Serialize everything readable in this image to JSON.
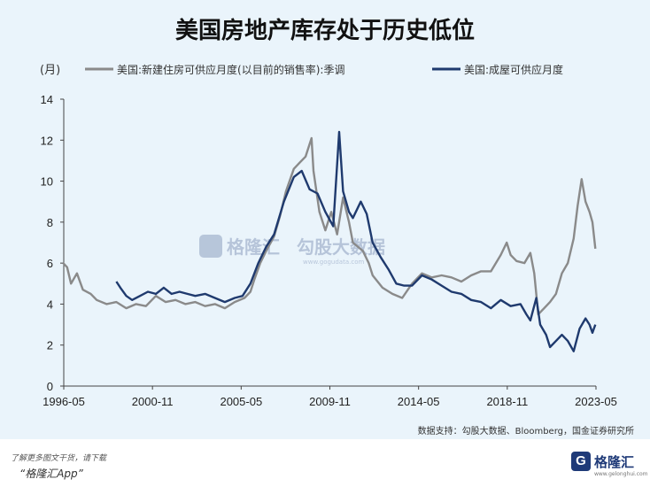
{
  "title": "美国房地产库存处于历史低位",
  "chart_data": {
    "type": "line",
    "unit_label": "(月)",
    "ylim": [
      0,
      14
    ],
    "yticks": [
      0,
      2,
      4,
      6,
      8,
      10,
      12,
      14
    ],
    "xlim": [
      1996.33,
      2023.33
    ],
    "xticks": [
      {
        "label": "1996-05",
        "value": 1996.33
      },
      {
        "label": "2000-11",
        "value": 2000.83
      },
      {
        "label": "2005-05",
        "value": 2005.33
      },
      {
        "label": "2009-11",
        "value": 2009.83
      },
      {
        "label": "2014-05",
        "value": 2014.33
      },
      {
        "label": "2018-11",
        "value": 2018.83
      },
      {
        "label": "2023-05",
        "value": 2023.33
      }
    ],
    "legend_position": "top",
    "series": [
      {
        "name": "美国:新建住房可供应月度(以目前的销售率):季调",
        "color": "#8a8a8a",
        "points": [
          [
            1996.3,
            6.0
          ],
          [
            1996.5,
            5.8
          ],
          [
            1996.7,
            5.0
          ],
          [
            1997.0,
            5.5
          ],
          [
            1997.3,
            4.7
          ],
          [
            1997.7,
            4.5
          ],
          [
            1998.0,
            4.2
          ],
          [
            1998.5,
            4.0
          ],
          [
            1999.0,
            4.1
          ],
          [
            1999.5,
            3.8
          ],
          [
            2000.0,
            4.0
          ],
          [
            2000.5,
            3.9
          ],
          [
            2000.8,
            4.2
          ],
          [
            2001.0,
            4.4
          ],
          [
            2001.5,
            4.1
          ],
          [
            2002.0,
            4.2
          ],
          [
            2002.5,
            4.0
          ],
          [
            2003.0,
            4.1
          ],
          [
            2003.5,
            3.9
          ],
          [
            2004.0,
            4.0
          ],
          [
            2004.5,
            3.8
          ],
          [
            2005.0,
            4.1
          ],
          [
            2005.5,
            4.3
          ],
          [
            2005.8,
            4.6
          ],
          [
            2006.0,
            5.2
          ],
          [
            2006.3,
            6.0
          ],
          [
            2006.6,
            6.6
          ],
          [
            2007.0,
            7.3
          ],
          [
            2007.3,
            8.3
          ],
          [
            2007.6,
            9.5
          ],
          [
            2008.0,
            10.6
          ],
          [
            2008.3,
            10.9
          ],
          [
            2008.6,
            11.2
          ],
          [
            2008.9,
            12.1
          ],
          [
            2009.0,
            10.5
          ],
          [
            2009.3,
            8.5
          ],
          [
            2009.6,
            7.6
          ],
          [
            2009.9,
            8.5
          ],
          [
            2010.2,
            7.4
          ],
          [
            2010.5,
            9.2
          ],
          [
            2010.8,
            8.0
          ],
          [
            2011.0,
            7.0
          ],
          [
            2011.5,
            6.6
          ],
          [
            2011.8,
            6.0
          ],
          [
            2012.0,
            5.4
          ],
          [
            2012.5,
            4.8
          ],
          [
            2013.0,
            4.5
          ],
          [
            2013.5,
            4.3
          ],
          [
            2014.0,
            5.0
          ],
          [
            2014.5,
            5.5
          ],
          [
            2015.0,
            5.3
          ],
          [
            2015.5,
            5.4
          ],
          [
            2016.0,
            5.3
          ],
          [
            2016.5,
            5.1
          ],
          [
            2017.0,
            5.4
          ],
          [
            2017.5,
            5.6
          ],
          [
            2018.0,
            5.6
          ],
          [
            2018.5,
            6.4
          ],
          [
            2018.8,
            7.0
          ],
          [
            2019.0,
            6.4
          ],
          [
            2019.3,
            6.1
          ],
          [
            2019.7,
            6.0
          ],
          [
            2020.0,
            6.5
          ],
          [
            2020.2,
            5.5
          ],
          [
            2020.4,
            3.5
          ],
          [
            2020.7,
            3.8
          ],
          [
            2021.0,
            4.1
          ],
          [
            2021.3,
            4.5
          ],
          [
            2021.6,
            5.5
          ],
          [
            2021.9,
            6.0
          ],
          [
            2022.2,
            7.2
          ],
          [
            2022.4,
            8.8
          ],
          [
            2022.6,
            10.1
          ],
          [
            2022.8,
            9.0
          ],
          [
            2023.0,
            8.5
          ],
          [
            2023.15,
            8.0
          ],
          [
            2023.3,
            6.7
          ]
        ]
      },
      {
        "name": "美国:成屋可供应月度",
        "color": "#1f3a6e",
        "points": [
          [
            1999.0,
            5.1
          ],
          [
            1999.2,
            4.8
          ],
          [
            1999.5,
            4.4
          ],
          [
            1999.8,
            4.2
          ],
          [
            2000.2,
            4.4
          ],
          [
            2000.6,
            4.6
          ],
          [
            2001.0,
            4.5
          ],
          [
            2001.4,
            4.8
          ],
          [
            2001.8,
            4.5
          ],
          [
            2002.2,
            4.6
          ],
          [
            2002.6,
            4.5
          ],
          [
            2003.0,
            4.4
          ],
          [
            2003.5,
            4.5
          ],
          [
            2004.0,
            4.3
          ],
          [
            2004.5,
            4.1
          ],
          [
            2005.0,
            4.3
          ],
          [
            2005.4,
            4.4
          ],
          [
            2005.8,
            5.0
          ],
          [
            2006.2,
            6.0
          ],
          [
            2006.6,
            6.8
          ],
          [
            2007.0,
            7.4
          ],
          [
            2007.5,
            9.0
          ],
          [
            2008.0,
            10.2
          ],
          [
            2008.4,
            10.5
          ],
          [
            2008.8,
            9.6
          ],
          [
            2009.2,
            9.4
          ],
          [
            2009.6,
            8.5
          ],
          [
            2010.0,
            7.8
          ],
          [
            2010.3,
            12.4
          ],
          [
            2010.5,
            9.5
          ],
          [
            2010.8,
            8.5
          ],
          [
            2011.0,
            8.2
          ],
          [
            2011.4,
            9.0
          ],
          [
            2011.7,
            8.4
          ],
          [
            2012.0,
            7.0
          ],
          [
            2012.4,
            6.3
          ],
          [
            2012.8,
            5.7
          ],
          [
            2013.2,
            5.0
          ],
          [
            2013.6,
            4.9
          ],
          [
            2014.0,
            4.9
          ],
          [
            2014.5,
            5.4
          ],
          [
            2015.0,
            5.2
          ],
          [
            2015.5,
            4.9
          ],
          [
            2016.0,
            4.6
          ],
          [
            2016.5,
            4.5
          ],
          [
            2017.0,
            4.2
          ],
          [
            2017.5,
            4.1
          ],
          [
            2018.0,
            3.8
          ],
          [
            2018.5,
            4.2
          ],
          [
            2019.0,
            3.9
          ],
          [
            2019.5,
            4.0
          ],
          [
            2019.8,
            3.5
          ],
          [
            2020.0,
            3.2
          ],
          [
            2020.3,
            4.3
          ],
          [
            2020.5,
            3.0
          ],
          [
            2020.8,
            2.5
          ],
          [
            2021.0,
            1.9
          ],
          [
            2021.3,
            2.2
          ],
          [
            2021.6,
            2.5
          ],
          [
            2021.9,
            2.2
          ],
          [
            2022.2,
            1.7
          ],
          [
            2022.5,
            2.8
          ],
          [
            2022.8,
            3.3
          ],
          [
            2023.0,
            3.0
          ],
          [
            2023.15,
            2.6
          ],
          [
            2023.3,
            3.0
          ]
        ]
      }
    ]
  },
  "watermark": {
    "logo_text": "格隆汇",
    "brand": "勾股大数据",
    "url": "www.gogudata.com"
  },
  "source": "数据支持：勾股大数据、Bloomberg，国金证券研究所",
  "footer": {
    "line1": "了解更多图文干货，请下载",
    "line2": "“格隆汇App”",
    "logo_mark": "G",
    "logo_name": "格隆汇",
    "logo_sub": "www.gelonghui.com"
  }
}
